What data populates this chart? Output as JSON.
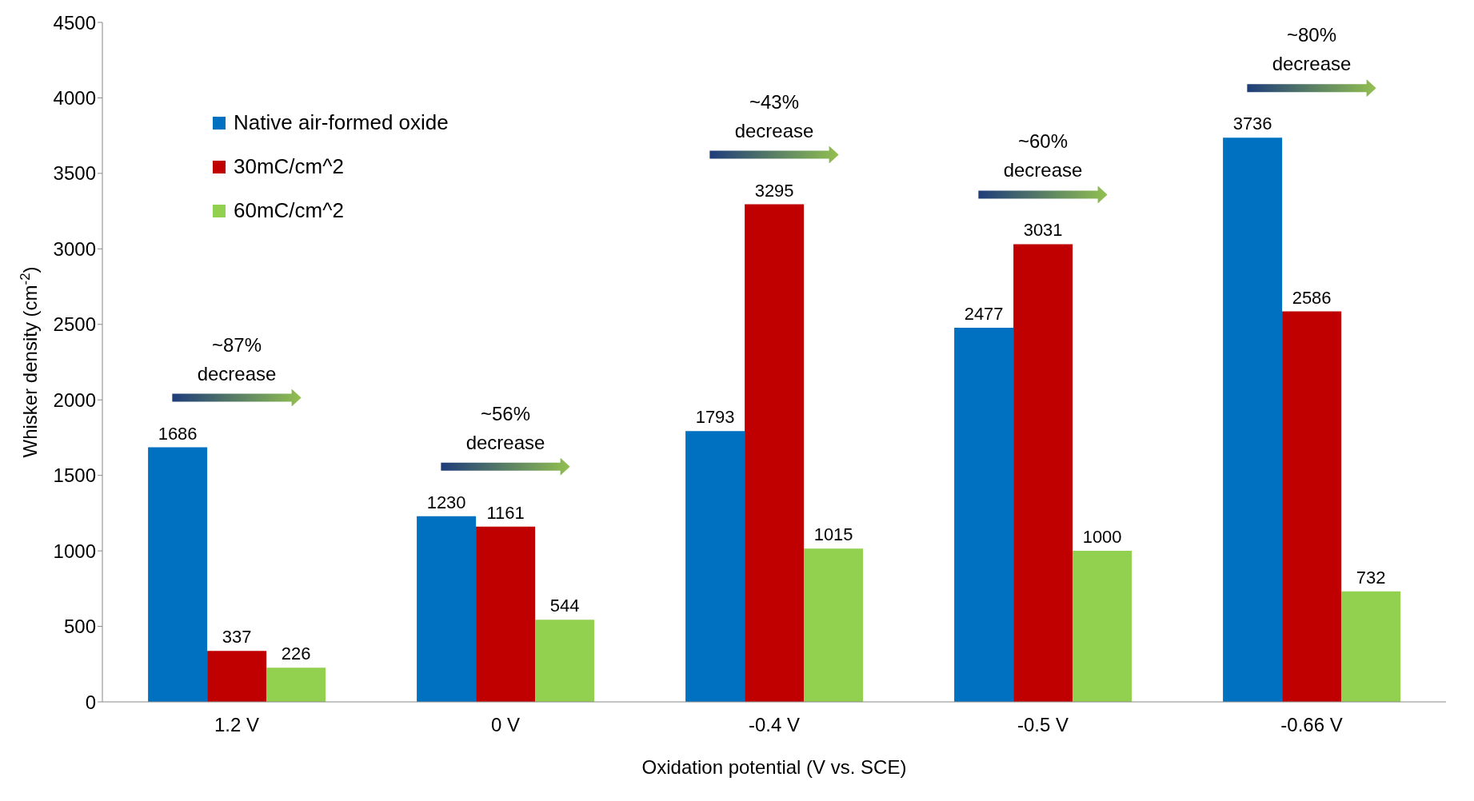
{
  "chart_data": {
    "type": "bar",
    "xlabel": "Oxidation potential (V vs. SCE)",
    "ylabel": "Whisker density (cm$^{-2}$)",
    "categories": [
      "1.2 V",
      "0 V",
      "-0.4 V",
      "-0.5 V",
      "-0.66 V"
    ],
    "series": [
      {
        "name": "Native air-formed oxide",
        "color": "#0070c0",
        "values": [
          1686,
          1230,
          1793,
          2477,
          3736
        ]
      },
      {
        "name": "30mC/cm^2",
        "color": "#c00000",
        "values": [
          337,
          1161,
          3295,
          3031,
          2586
        ]
      },
      {
        "name": "60mC/cm^2",
        "color": "#92d050",
        "values": [
          226,
          544,
          1015,
          1000,
          732
        ]
      }
    ],
    "ylim": [
      0,
      4500
    ],
    "yticks": [
      0,
      500,
      1000,
      1500,
      2000,
      2500,
      3000,
      3500,
      4000,
      4500
    ],
    "data_labels": true,
    "legend": "top left",
    "grid": false,
    "annotations": [
      "~87% decrease",
      "~56% decrease",
      "~43% decrease",
      "~60% decrease",
      "~80% decrease"
    ]
  }
}
